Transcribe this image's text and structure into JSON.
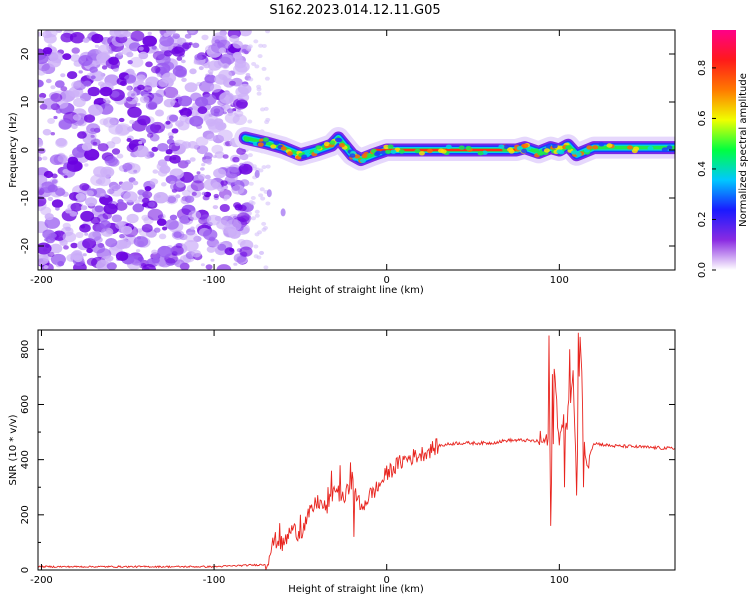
{
  "figure_title": "S162.2023.014.12.11.G05",
  "colorbar": {
    "label": "Normalized spectral amplitude",
    "ticks": [
      "0.0",
      "0.2",
      "0.4",
      "0.6",
      "0.8"
    ],
    "stops": [
      "#ffffff",
      "#8a2be2",
      "#1a1aff",
      "#00c8ff",
      "#00ff40",
      "#f0ff00",
      "#ff7a00",
      "#ff1a1a",
      "#ff0088"
    ]
  },
  "chart_data": [
    {
      "type": "heatmap",
      "xlabel": "Height of straight line (km)",
      "ylabel": "Frequency (Hz)",
      "xlim": [
        -202,
        167
      ],
      "ylim": [
        -25,
        25
      ],
      "x_ticks": [
        -200,
        -100,
        0,
        100
      ],
      "y_ticks": [
        -20,
        -10,
        0,
        10,
        20
      ],
      "noise_region_x": [
        -202,
        -80
      ],
      "signal_trace": {
        "x": [
          -82,
          -70,
          -60,
          -50,
          -40,
          -32,
          -28,
          -20,
          -15,
          -8,
          0,
          20,
          40,
          60,
          75,
          80,
          88,
          95,
          100,
          105,
          110,
          120,
          140,
          167
        ],
        "freq": [
          2.5,
          1.5,
          0.5,
          -1,
          0,
          1,
          2.5,
          -1,
          -2,
          -1,
          0,
          0,
          0,
          0,
          0,
          0.5,
          -0.5,
          0.5,
          0,
          1,
          -1,
          0.5,
          0.5,
          0.5
        ]
      },
      "dispersed_tail": {
        "x": [
          -75,
          -68,
          -60
        ],
        "freq": [
          -5,
          -9,
          -13
        ]
      }
    },
    {
      "type": "line",
      "xlabel": "Height of straight line (km)",
      "ylabel": "SNR (10 * v/v)",
      "xlim": [
        -202,
        167
      ],
      "ylim": [
        0,
        870
      ],
      "x_ticks": [
        -200,
        -100,
        0,
        100
      ],
      "y_ticks": [
        0,
        200,
        400,
        600,
        800
      ],
      "color": "#e8251f",
      "series": [
        {
          "x": [
            -202,
            -100,
            -70,
            -65,
            -60,
            -55,
            -50,
            -45,
            -40,
            -35,
            -30,
            -25,
            -20,
            -15,
            -10,
            -5,
            0,
            10,
            20,
            30,
            40,
            50,
            60,
            70,
            80,
            90,
            94,
            95,
            96,
            97,
            100,
            105,
            108,
            110,
            112,
            115,
            120,
            130,
            140,
            150,
            160,
            167
          ],
          "y": [
            12,
            12,
            20,
            110,
            90,
            150,
            130,
            200,
            250,
            220,
            300,
            250,
            330,
            220,
            270,
            300,
            350,
            400,
            420,
            450,
            460,
            460,
            460,
            470,
            470,
            465,
            470,
            580,
            160,
            720,
            480,
            560,
            700,
            290,
            860,
            380,
            460,
            450,
            448,
            445,
            442,
            440
          ]
        }
      ],
      "noise_amplitude": 12,
      "spikes": [
        {
          "x": -62,
          "y": 170
        },
        {
          "x": -50,
          "y": 200
        },
        {
          "x": -34,
          "y": 300
        },
        {
          "x": -32,
          "y": 360
        },
        {
          "x": -27,
          "y": 380
        },
        {
          "x": -21,
          "y": 390
        },
        {
          "x": -19,
          "y": 120
        },
        {
          "x": -15,
          "y": 220
        },
        {
          "x": 94,
          "y": 850
        },
        {
          "x": 95,
          "y": 160
        },
        {
          "x": 96,
          "y": 710
        },
        {
          "x": 103,
          "y": 300
        },
        {
          "x": 106,
          "y": 800
        },
        {
          "x": 110,
          "y": 270
        },
        {
          "x": 111,
          "y": 860
        },
        {
          "x": 114,
          "y": 300
        }
      ]
    }
  ]
}
